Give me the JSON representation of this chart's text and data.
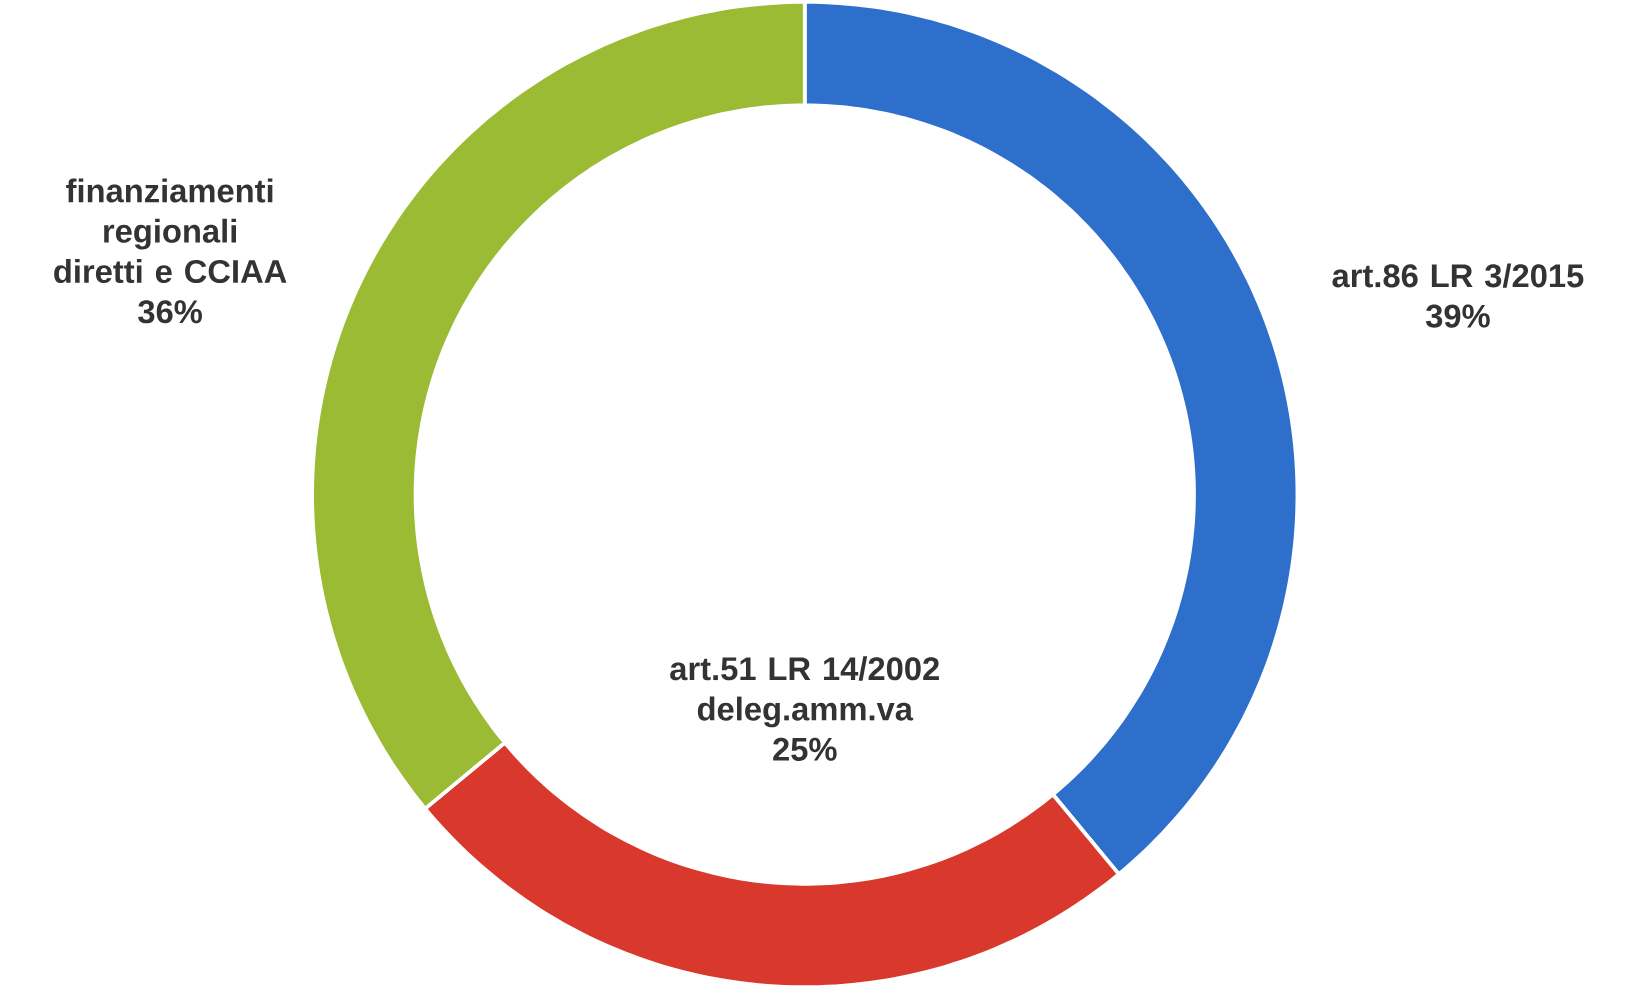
{
  "chart_data": {
    "type": "donut",
    "categories": [
      "art.86 LR 3/2015",
      "art.51 LR 14/2002 deleg.amm.va",
      "finanziamenti regionali diretti e CCIAA"
    ],
    "values": [
      39,
      25,
      36
    ],
    "value_labels": [
      "39%",
      "25%",
      "36%"
    ],
    "colors": [
      "#2f6fcc",
      "#d8392c",
      "#9cbb34"
    ]
  }
}
